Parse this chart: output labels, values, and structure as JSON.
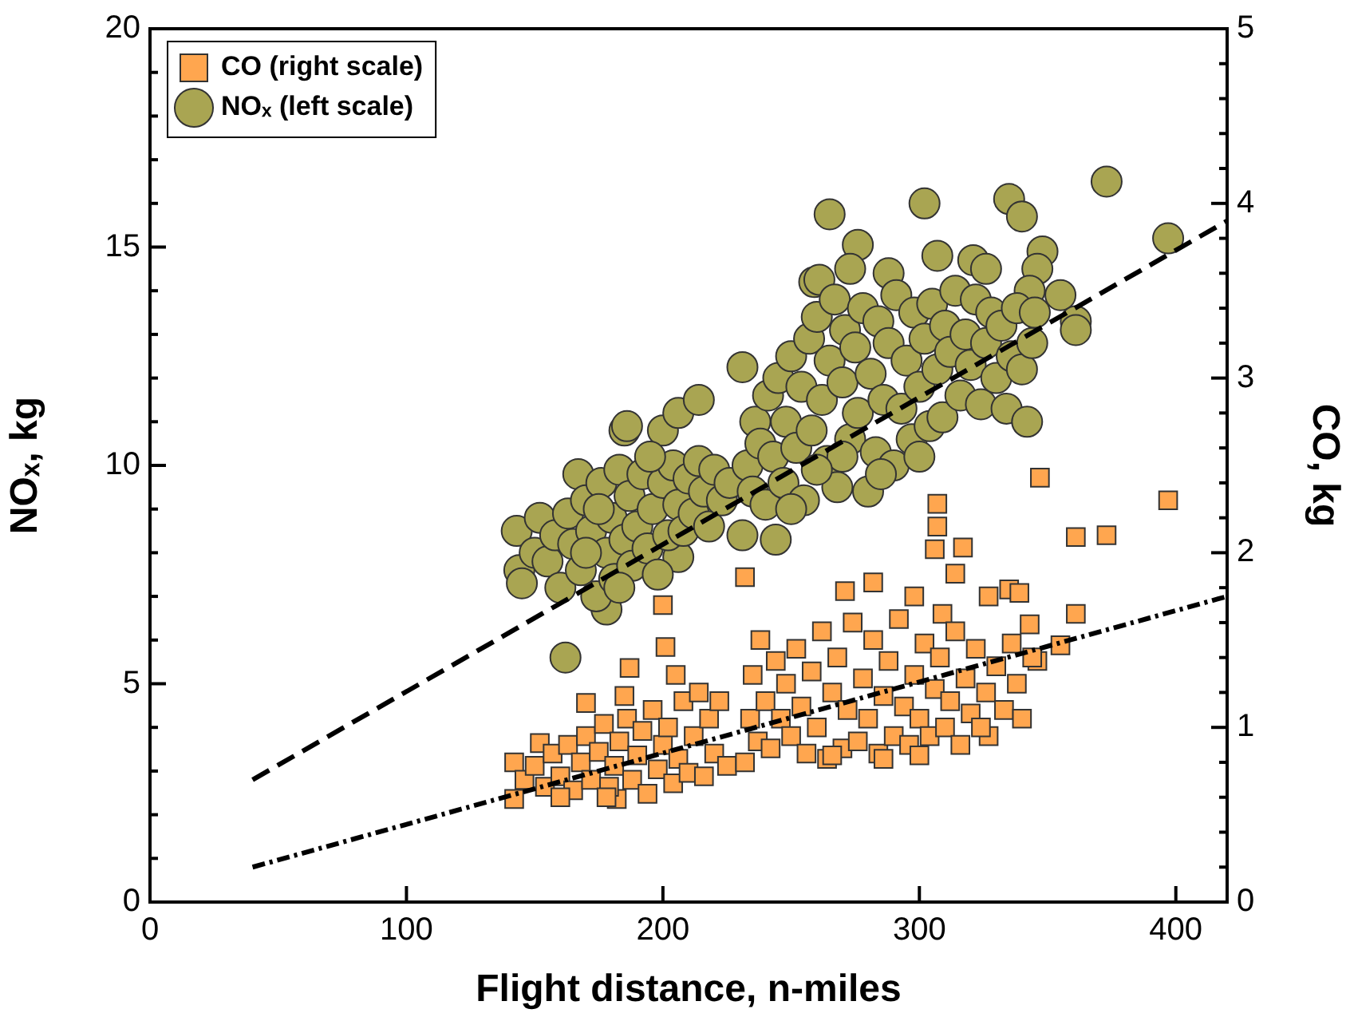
{
  "chart_data": {
    "type": "scatter",
    "xlabel": "Flight distance, n-miles",
    "ylabel": "NOₓ, kg",
    "y2label": "CO, kg",
    "xlim": [
      0,
      420
    ],
    "xticks": [
      0,
      100,
      200,
      300,
      400
    ],
    "ylim": [
      0,
      20
    ],
    "yticks": [
      0,
      {
        "value": 1,
        "label": null
      },
      {
        "value": 2,
        "label": null
      },
      {
        "value": 3,
        "label": null
      },
      {
        "value": 4,
        "label": null
      },
      5,
      {
        "value": 6,
        "label": null
      },
      {
        "value": 7,
        "label": null
      },
      {
        "value": 8,
        "label": null
      },
      {
        "value": 9,
        "label": null
      },
      10,
      {
        "value": 11,
        "label": null
      },
      {
        "value": 12,
        "label": null
      },
      {
        "value": 13,
        "label": null
      },
      {
        "value": 14,
        "label": null
      },
      15,
      {
        "value": 16,
        "label": null
      },
      {
        "value": 17,
        "label": null
      },
      {
        "value": 18,
        "label": null
      },
      {
        "value": 19,
        "label": null
      },
      20
    ],
    "y2lim": [
      0,
      5
    ],
    "y2ticks": [
      0,
      {
        "value": 0.2,
        "label": null
      },
      {
        "value": 0.4,
        "label": null
      },
      {
        "value": 0.6,
        "label": null
      },
      {
        "value": 0.8,
        "label": null
      },
      1,
      {
        "value": 1.2,
        "label": null
      },
      {
        "value": 1.4,
        "label": null
      },
      {
        "value": 1.6,
        "label": null
      },
      {
        "value": 1.8,
        "label": null
      },
      2,
      {
        "value": 2.2,
        "label": null
      },
      {
        "value": 2.4,
        "label": null
      },
      {
        "value": 2.6,
        "label": null
      },
      {
        "value": 2.8,
        "label": null
      },
      3,
      {
        "value": 3.2,
        "label": null
      },
      {
        "value": 3.4,
        "label": null
      },
      {
        "value": 3.6,
        "label": null
      },
      {
        "value": 3.8,
        "label": null
      },
      4,
      {
        "value": 4.2,
        "label": null
      },
      {
        "value": 4.4,
        "label": null
      },
      {
        "value": 4.6,
        "label": null
      },
      {
        "value": 4.8,
        "label": null
      },
      5
    ],
    "legend": "top left",
    "series": [
      {
        "type": "line",
        "axis": "y2",
        "color": "#000000",
        "line_style": "dashdot",
        "x": [
          40,
          420
        ],
        "values": [
          0.2,
          1.75
        ]
      },
      {
        "type": "line",
        "axis": "y",
        "color": "#000000",
        "line_style": "dashed",
        "x": [
          40,
          420
        ],
        "values": [
          2.8,
          15.6
        ]
      },
      {
        "name": "CO (right scale)",
        "axis": "y2",
        "marker": "square",
        "color": "#ffa64f",
        "x": [
          347,
          397,
          307,
          307,
          361,
          373,
          306,
          317,
          314,
          361,
          355,
          346,
          327,
          200,
          201,
          205,
          187,
          232,
          271,
          282,
          298,
          309,
          327,
          335,
          339,
          343,
          142,
          142,
          152,
          170,
          185,
          182,
          146,
          150,
          154,
          157,
          160,
          163,
          165,
          168,
          170,
          172,
          175,
          177,
          179,
          181,
          183,
          186,
          188,
          190,
          192,
          194,
          196,
          198,
          200,
          202,
          204,
          206,
          208,
          210,
          212,
          214,
          216,
          218,
          220,
          222,
          225,
          178,
          160,
          232,
          234,
          235,
          237,
          238,
          240,
          242,
          244,
          246,
          248,
          250,
          252,
          254,
          256,
          258,
          260,
          262,
          264,
          266,
          268,
          270,
          272,
          274,
          276,
          278,
          280,
          282,
          284,
          286,
          288,
          290,
          292,
          294,
          296,
          298,
          300,
          302,
          304,
          306,
          308,
          310,
          312,
          314,
          316,
          318,
          320,
          322,
          324,
          326,
          330,
          333,
          336,
          338,
          340,
          344,
          266,
          286,
          300
        ],
        "values": [
          2.43,
          2.3,
          2.28,
          2.15,
          2.09,
          2.1,
          2.02,
          2.03,
          1.88,
          1.65,
          1.47,
          1.38,
          0.95,
          1.7,
          1.46,
          1.3,
          1.34,
          1.86,
          1.78,
          1.83,
          1.75,
          1.65,
          1.75,
          1.79,
          1.77,
          1.59,
          0.59,
          0.8,
          0.91,
          1.14,
          1.18,
          0.59,
          0.7,
          0.78,
          0.66,
          0.85,
          0.72,
          0.9,
          0.64,
          0.8,
          0.95,
          0.7,
          0.86,
          1.02,
          0.66,
          0.78,
          0.92,
          1.05,
          0.7,
          0.84,
          0.98,
          0.62,
          1.1,
          0.76,
          0.9,
          1.0,
          0.68,
          0.82,
          1.15,
          0.74,
          0.95,
          1.2,
          0.72,
          1.05,
          0.85,
          1.15,
          0.78,
          0.6,
          0.6,
          0.8,
          1.05,
          1.3,
          0.92,
          1.5,
          1.15,
          0.88,
          1.38,
          1.05,
          1.25,
          0.95,
          1.45,
          1.12,
          0.85,
          1.32,
          1.0,
          1.55,
          0.82,
          1.2,
          1.4,
          0.88,
          1.1,
          1.6,
          0.92,
          1.28,
          1.05,
          1.5,
          0.85,
          1.18,
          1.38,
          0.95,
          1.62,
          1.12,
          0.9,
          1.3,
          1.05,
          1.48,
          0.95,
          1.22,
          1.4,
          1.0,
          1.15,
          1.55,
          0.9,
          1.28,
          1.08,
          1.45,
          1.0,
          1.2,
          1.35,
          1.1,
          1.48,
          1.25,
          1.05,
          1.4,
          0.84,
          0.82,
          0.84
        ]
      },
      {
        "name": "NOₓ (left scale)",
        "axis": "y",
        "marker": "circle",
        "color": "#a9a552",
        "x": [
          143,
          144,
          145,
          152,
          162,
          167,
          178,
          185,
          200,
          206,
          214,
          206,
          231,
          244,
          231,
          259,
          265,
          302,
          335,
          340,
          373,
          397,
          348,
          346,
          343,
          355,
          361,
          361,
          276,
          261,
          273,
          288,
          307,
          321,
          326,
          186,
          150,
          155,
          158,
          160,
          163,
          165,
          168,
          170,
          172,
          174,
          176,
          178,
          180,
          181,
          183,
          185,
          187,
          188,
          190,
          192,
          194,
          196,
          198,
          200,
          202,
          204,
          206,
          208,
          210,
          212,
          214,
          216,
          218,
          220,
          223,
          226,
          175,
          195,
          183,
          170,
          233,
          235,
          236,
          238,
          240,
          241,
          243,
          245,
          247,
          248,
          250,
          252,
          254,
          255,
          257,
          258,
          260,
          262,
          264,
          265,
          267,
          268,
          270,
          271,
          273,
          275,
          276,
          278,
          280,
          281,
          283,
          284,
          286,
          288,
          290,
          291,
          293,
          295,
          297,
          298,
          300,
          302,
          304,
          305,
          307,
          309,
          310,
          312,
          314,
          316,
          318,
          320,
          322,
          324,
          326,
          328,
          330,
          332,
          334,
          336,
          338,
          340,
          342,
          344,
          345,
          270,
          285,
          260,
          250,
          300
        ],
        "values": [
          8.5,
          7.6,
          7.3,
          8.8,
          5.6,
          9.8,
          6.7,
          10.8,
          10.8,
          11.2,
          11.5,
          7.9,
          8.4,
          8.3,
          12.25,
          14.2,
          15.75,
          16.0,
          16.1,
          15.7,
          16.5,
          15.2,
          14.9,
          14.5,
          14.0,
          13.9,
          13.3,
          13.1,
          15.05,
          14.25,
          14.5,
          14.4,
          14.8,
          14.7,
          14.5,
          10.9,
          8.0,
          7.8,
          8.4,
          7.2,
          8.9,
          8.2,
          7.6,
          9.2,
          8.5,
          7.0,
          9.6,
          8.0,
          8.8,
          7.4,
          9.9,
          8.3,
          9.3,
          7.7,
          8.6,
          9.8,
          8.1,
          9.0,
          7.5,
          9.6,
          8.4,
          10.0,
          9.1,
          8.5,
          9.7,
          8.9,
          10.1,
          9.4,
          8.6,
          9.9,
          9.2,
          9.6,
          9.0,
          10.2,
          7.2,
          8.0,
          10.0,
          9.4,
          11.0,
          10.5,
          9.1,
          11.6,
          10.2,
          12.0,
          9.6,
          11.0,
          12.5,
          10.4,
          11.8,
          9.2,
          12.9,
          10.8,
          13.4,
          11.5,
          10.1,
          12.4,
          13.8,
          9.5,
          11.9,
          13.1,
          10.6,
          12.7,
          11.2,
          13.6,
          9.4,
          12.1,
          10.3,
          13.3,
          11.5,
          12.8,
          10.0,
          13.9,
          11.3,
          12.4,
          10.6,
          13.5,
          11.8,
          12.9,
          10.9,
          13.7,
          12.2,
          11.1,
          13.2,
          12.6,
          14.0,
          11.6,
          13.0,
          12.3,
          13.8,
          11.4,
          12.8,
          13.5,
          12.0,
          13.2,
          11.3,
          12.5,
          13.6,
          12.2,
          11.0,
          12.8,
          13.5,
          10.2,
          9.8,
          9.9,
          9.0,
          10.2
        ]
      }
    ]
  }
}
